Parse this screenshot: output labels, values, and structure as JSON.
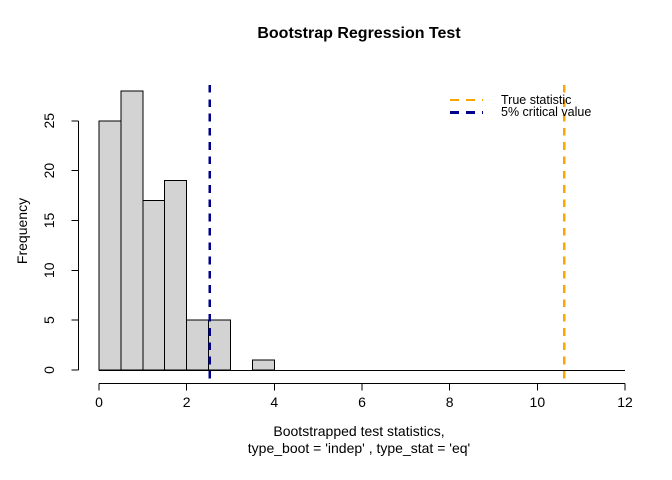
{
  "title": "Bootstrap Regression Test",
  "y_axis_label": "Frequency",
  "x_axis_label_line1": "Bootstrapped test statistics,",
  "x_axis_label_line2": "type_boot = 'indep' , type_stat = 'eq'",
  "legend": {
    "position": "topright",
    "items": [
      {
        "label": "True statistic",
        "color": "#FFA500",
        "linestyle": "dashed"
      },
      {
        "label": "5% critical value",
        "color": "#00008B",
        "linestyle": "dashed"
      }
    ]
  },
  "chart_data": {
    "type": "bar",
    "subtype": "histogram",
    "title": "Bootstrap Regression Test",
    "xlabel": "Bootstrapped test statistics, type_boot = 'indep' , type_stat = 'eq'",
    "ylabel": "Frequency",
    "bin_start": 0,
    "bin_width": 0.5,
    "counts": [
      25,
      28,
      17,
      19,
      5,
      5,
      0,
      1,
      0,
      0,
      0,
      0,
      0,
      0,
      0,
      0,
      0,
      0,
      0,
      0,
      0,
      0,
      0,
      0
    ],
    "x_ticks": [
      0,
      2,
      4,
      6,
      8,
      10,
      12
    ],
    "y_ticks": [
      0,
      5,
      10,
      15,
      20,
      25
    ],
    "xlim": [
      0,
      12
    ],
    "ylim": [
      0,
      28
    ],
    "grid": false,
    "bar_fill": "#D3D3D3",
    "bar_stroke": "#000000",
    "vlines": [
      {
        "x": 10.61,
        "label": "True statistic",
        "color": "#FFA500",
        "linestyle": "dashed"
      },
      {
        "x": 2.53,
        "label": "5% critical value",
        "color": "#00008B",
        "linestyle": "dashed"
      }
    ],
    "legend_position": "topright"
  }
}
